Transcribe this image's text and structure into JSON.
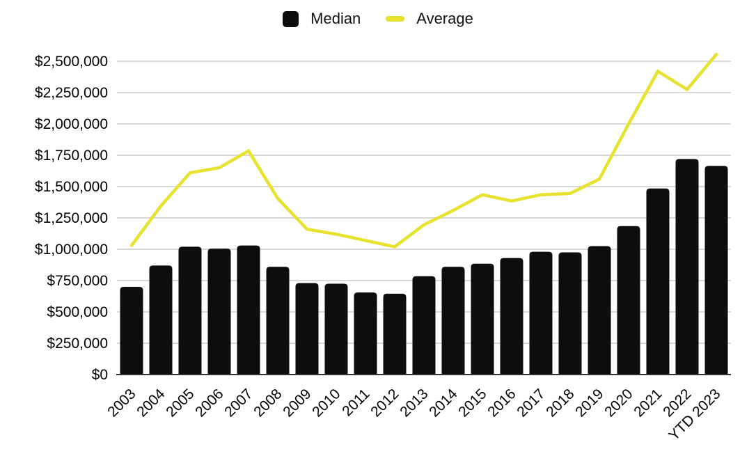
{
  "chart_data": {
    "type": "combo-bar-line",
    "title": "",
    "xlabel": "",
    "ylabel": "",
    "categories": [
      "2003",
      "2004",
      "2005",
      "2006",
      "2007",
      "2008",
      "2009",
      "2010",
      "2011",
      "2012",
      "2013",
      "2014",
      "2015",
      "2016",
      "2017",
      "2018",
      "2019",
      "2020",
      "2021",
      "2022",
      "YTD 2023"
    ],
    "series": [
      {
        "name": "Median",
        "type": "bar",
        "color": "#0d0d0d",
        "values": [
          700000,
          870000,
          1020000,
          1005000,
          1030000,
          860000,
          730000,
          725000,
          655000,
          645000,
          785000,
          860000,
          885000,
          930000,
          980000,
          975000,
          1025000,
          1185000,
          1485000,
          1720000,
          1665000
        ]
      },
      {
        "name": "Average",
        "type": "line",
        "color": "#e7e22e",
        "values": [
          1030000,
          1345000,
          1610000,
          1650000,
          1785000,
          1405000,
          1160000,
          1120000,
          1070000,
          1020000,
          1195000,
          1310000,
          1435000,
          1385000,
          1435000,
          1445000,
          1560000,
          2000000,
          2420000,
          2275000,
          2555000
        ]
      }
    ],
    "ylim": [
      0,
      2500000
    ],
    "ytick_step": 250000,
    "ytick_labels": [
      "$0",
      "$250,000",
      "$500,000",
      "$750,000",
      "$1,000,000",
      "$1,250,000",
      "$1,500,000",
      "$1,750,000",
      "$2,000,000",
      "$2,250,000",
      "$2,500,000"
    ],
    "grid": true,
    "legend_position": "top",
    "grid_color": "#cccccc",
    "axis_line_color": "#333333",
    "label_color": "#000000",
    "background_color": "#ffffff"
  }
}
